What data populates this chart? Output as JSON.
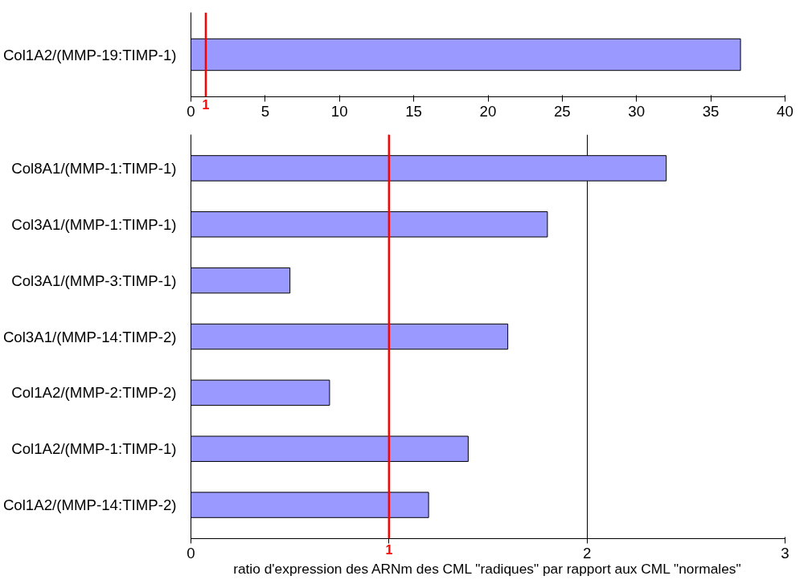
{
  "chart_data": [
    {
      "type": "bar",
      "orientation": "horizontal",
      "categories": [
        "Col1A2/(MMP-19:TIMP-1)"
      ],
      "values": [
        37
      ],
      "color": "#9999ff",
      "xlim": [
        0,
        40
      ],
      "xticks": [
        0,
        5,
        10,
        15,
        20,
        25,
        30,
        35,
        40
      ],
      "grid": false,
      "ref_lines": [
        {
          "axis": "x",
          "value": 1,
          "label": "1",
          "color": "#ff0000"
        }
      ]
    },
    {
      "type": "bar",
      "orientation": "horizontal",
      "categories": [
        "Col8A1/(MMP-1:TIMP-1)",
        "Col3A1/(MMP-1:TIMP-1)",
        "Col3A1/(MMP-3:TIMP-1)",
        "Col3A1/(MMP-14:TIMP-2)",
        "Col1A2/(MMP-2:TIMP-2)",
        "Col1A2/(MMP-1:TIMP-1)",
        "Col1A2/(MMP-14:TIMP-2)"
      ],
      "values": [
        2.4,
        1.8,
        0.5,
        1.6,
        0.7,
        1.4,
        1.2
      ],
      "color": "#9999ff",
      "xlim": [
        0,
        3
      ],
      "xticks": [
        0,
        {
          "value": 1,
          "label": null
        },
        2,
        3
      ],
      "grid": "x",
      "xlabel": "ratio d'expression des ARNm des CML \"radiques\" par rapport aux CML \"normales\"",
      "ref_lines": [
        {
          "axis": "x",
          "value": 1,
          "label": "1",
          "color": "#ff0000"
        }
      ]
    }
  ]
}
